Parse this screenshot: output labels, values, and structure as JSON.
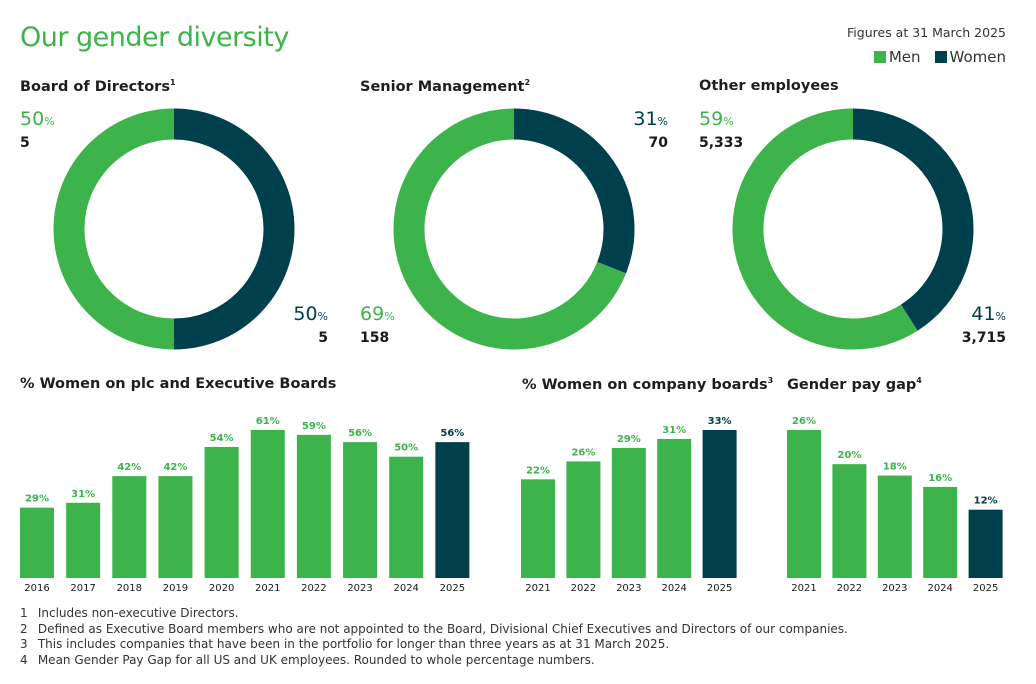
{
  "header": {
    "title": "Our gender diversity",
    "figures_note": "Figures at 31 March 2025",
    "legend": [
      {
        "label": "Men",
        "color": "#3cb44b"
      },
      {
        "label": "Women",
        "color": "#00404c"
      }
    ]
  },
  "colors": {
    "men": "#3cb44b",
    "women": "#00404c"
  },
  "chart_data": [
    {
      "type": "pie",
      "title": "Board of Directors",
      "footnote_ref": "1",
      "donut": true,
      "slices": [
        {
          "label": "Women",
          "percent": 50,
          "count": "5"
        },
        {
          "label": "Men",
          "percent": 50,
          "count": "5"
        }
      ]
    },
    {
      "type": "pie",
      "title": "Senior Management",
      "footnote_ref": "2",
      "donut": true,
      "slices": [
        {
          "label": "Women",
          "percent": 31,
          "count": "70"
        },
        {
          "label": "Men",
          "percent": 69,
          "count": "158"
        }
      ]
    },
    {
      "type": "pie",
      "title": "Other employees",
      "footnote_ref": "",
      "donut": true,
      "slices": [
        {
          "label": "Women",
          "percent": 41,
          "count": "3,715"
        },
        {
          "label": "Men",
          "percent": 59,
          "count": "5,333"
        }
      ]
    },
    {
      "type": "bar",
      "title": "% Women on plc and Executive Boards",
      "footnote_ref": "",
      "categories": [
        "2016",
        "2017",
        "2018",
        "2019",
        "2020",
        "2021",
        "2022",
        "2023",
        "2024",
        "2025"
      ],
      "values": [
        29,
        31,
        42,
        42,
        54,
        61,
        59,
        56,
        50,
        56
      ],
      "labels": [
        "29%",
        "31%",
        "42%",
        "42%",
        "54%",
        "61%",
        "59%",
        "56%",
        "50%",
        "56%"
      ],
      "highlight": "2025",
      "ylim": [
        0,
        61
      ]
    },
    {
      "type": "bar",
      "title": "% Women on company boards",
      "footnote_ref": "3",
      "categories": [
        "2021",
        "2022",
        "2023",
        "2024",
        "2025"
      ],
      "values": [
        22,
        26,
        29,
        31,
        33
      ],
      "labels": [
        "22%",
        "26%",
        "29%",
        "31%",
        "33%"
      ],
      "highlight": "2025",
      "ylim": [
        0,
        33
      ]
    },
    {
      "type": "bar",
      "title": "Gender pay gap",
      "footnote_ref": "4",
      "categories": [
        "2021",
        "2022",
        "2023",
        "2024",
        "2025"
      ],
      "values": [
        26,
        20,
        18,
        16,
        12
      ],
      "labels": [
        "26%",
        "20%",
        "18%",
        "16%",
        "12%"
      ],
      "highlight": "2025",
      "ylim": [
        0,
        26
      ]
    }
  ],
  "footnotes": [
    {
      "num": "1",
      "text": "Includes non-executive Directors."
    },
    {
      "num": "2",
      "text": "Defined as Executive Board members who are not appointed to the Board, Divisional Chief Executives and Directors of our companies."
    },
    {
      "num": "3",
      "text": "This includes companies that have been in the portfolio for longer than three years as at 31 March 2025."
    },
    {
      "num": "4",
      "text": "Mean Gender Pay Gap for all US and UK employees. Rounded to whole percentage numbers."
    }
  ]
}
